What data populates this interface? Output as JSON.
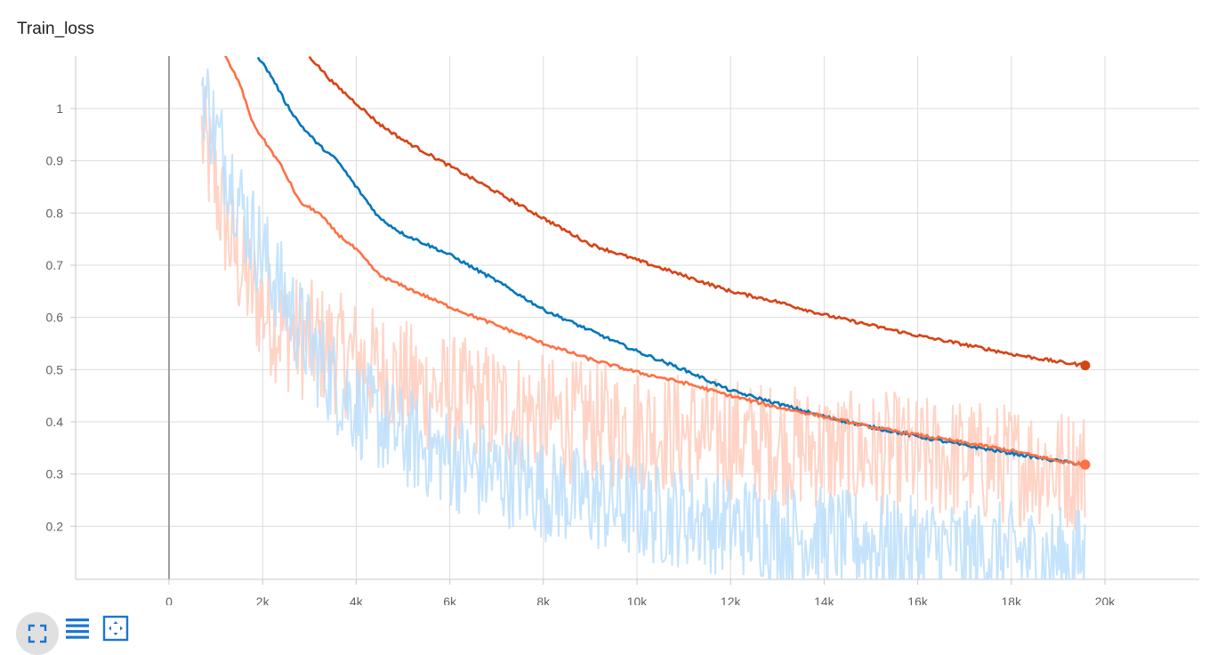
{
  "chart_data": {
    "type": "line",
    "title": "Train_loss",
    "xlabel": "",
    "ylabel": "",
    "xlim": [
      -2000,
      22000
    ],
    "ylim": [
      0.1,
      1.1
    ],
    "x_ticks": [
      0,
      2000,
      4000,
      6000,
      8000,
      10000,
      12000,
      14000,
      16000,
      18000,
      20000
    ],
    "x_tick_labels": [
      "0",
      "2k",
      "4k",
      "6k",
      "8k",
      "10k",
      "12k",
      "14k",
      "16k",
      "18k",
      "20k"
    ],
    "y_ticks": [
      0.2,
      0.3,
      0.4,
      0.5,
      0.6,
      0.7,
      0.8,
      0.9,
      1
    ],
    "y_tick_labels": [
      "0.2",
      "0.3",
      "0.4",
      "0.5",
      "0.6",
      "0.7",
      "0.8",
      "0.9",
      "1"
    ],
    "grid": true,
    "series": [
      {
        "color": "#d84315",
        "x": [
          3000,
          3500,
          4000,
          4500,
          5000,
          6000,
          7000,
          8000,
          9000,
          10000,
          11000,
          12000,
          13000,
          14000,
          15000,
          16000,
          17000,
          18000,
          19000,
          19580
        ],
        "values": [
          1.1,
          1.05,
          1.01,
          0.97,
          0.94,
          0.89,
          0.84,
          0.79,
          0.74,
          0.71,
          0.68,
          0.65,
          0.63,
          0.605,
          0.585,
          0.565,
          0.548,
          0.53,
          0.515,
          0.508
        ]
      },
      {
        "color": "#0077bb",
        "x": [
          1900,
          2200,
          2500,
          2800,
          3200,
          3600,
          4000,
          4500,
          5000,
          6000,
          7000,
          8000,
          9000,
          10000,
          11000,
          12000,
          13000,
          14000,
          15000,
          16000,
          17000,
          18000,
          19000,
          19580
        ],
        "values": [
          1.1,
          1.06,
          1.01,
          0.97,
          0.93,
          0.9,
          0.85,
          0.79,
          0.76,
          0.72,
          0.67,
          0.615,
          0.575,
          0.535,
          0.5,
          0.46,
          0.435,
          0.41,
          0.39,
          0.372,
          0.355,
          0.34,
          0.325,
          0.318
        ]
      },
      {
        "color": "#ff7043",
        "x": [
          1200,
          1500,
          1800,
          2100,
          2400,
          2800,
          3200,
          3600,
          4000,
          4500,
          5000,
          6000,
          7000,
          8000,
          9000,
          10000,
          11000,
          12000,
          13000,
          14000,
          15000,
          16000,
          17000,
          18000,
          19000,
          19580
        ],
        "values": [
          1.1,
          1.05,
          0.97,
          0.93,
          0.89,
          0.82,
          0.8,
          0.76,
          0.73,
          0.68,
          0.66,
          0.62,
          0.585,
          0.55,
          0.52,
          0.495,
          0.475,
          0.45,
          0.428,
          0.41,
          0.39,
          0.375,
          0.36,
          0.345,
          0.325,
          0.318
        ]
      }
    ],
    "raw_series": [
      {
        "color": "#ffccbc",
        "x": [
          700,
          1000,
          1300,
          1600,
          2000,
          2400,
          2800,
          3200,
          3600,
          4000,
          4500,
          5000,
          5500,
          6000,
          6500,
          7000,
          7500,
          8000,
          8500,
          9000,
          9500,
          10000,
          10500,
          11000,
          11500,
          12000,
          12500,
          13000,
          13500,
          14000,
          14500,
          15000,
          15500,
          16000,
          16500,
          17000,
          17500,
          18000,
          18500,
          19000,
          19580
        ],
        "values": [
          0.95,
          0.85,
          0.75,
          0.68,
          0.62,
          0.58,
          0.56,
          0.55,
          0.53,
          0.52,
          0.5,
          0.48,
          0.46,
          0.45,
          0.44,
          0.43,
          0.42,
          0.41,
          0.4,
          0.4,
          0.39,
          0.39,
          0.38,
          0.38,
          0.37,
          0.37,
          0.36,
          0.36,
          0.35,
          0.35,
          0.34,
          0.34,
          0.34,
          0.33,
          0.33,
          0.33,
          0.32,
          0.32,
          0.32,
          0.31,
          0.31
        ],
        "noise": 0.12
      },
      {
        "color": "#bbdefb",
        "x": [
          700,
          1000,
          1300,
          1600,
          2000,
          2400,
          2800,
          3200,
          3600,
          4000,
          4500,
          5000,
          5500,
          6000,
          6500,
          7000,
          7500,
          8000,
          8500,
          9000,
          9500,
          10000,
          10500,
          11000,
          11500,
          12000,
          12500,
          13000,
          13500,
          14000,
          14500,
          15000,
          15500,
          16000,
          16500,
          17000,
          17500,
          18000,
          18500,
          19000,
          19580
        ],
        "values": [
          1.05,
          0.95,
          0.88,
          0.8,
          0.72,
          0.65,
          0.58,
          0.52,
          0.47,
          0.43,
          0.4,
          0.37,
          0.35,
          0.33,
          0.31,
          0.3,
          0.29,
          0.27,
          0.26,
          0.25,
          0.24,
          0.23,
          0.22,
          0.22,
          0.21,
          0.2,
          0.2,
          0.19,
          0.18,
          0.18,
          0.17,
          0.17,
          0.16,
          0.16,
          0.16,
          0.15,
          0.15,
          0.15,
          0.14,
          0.14,
          0.14
        ],
        "noise": 0.1
      }
    ]
  },
  "toolbar": {
    "icons": [
      "expand-icon",
      "list-icon",
      "fit-icon"
    ],
    "accent": "#1976d2"
  }
}
